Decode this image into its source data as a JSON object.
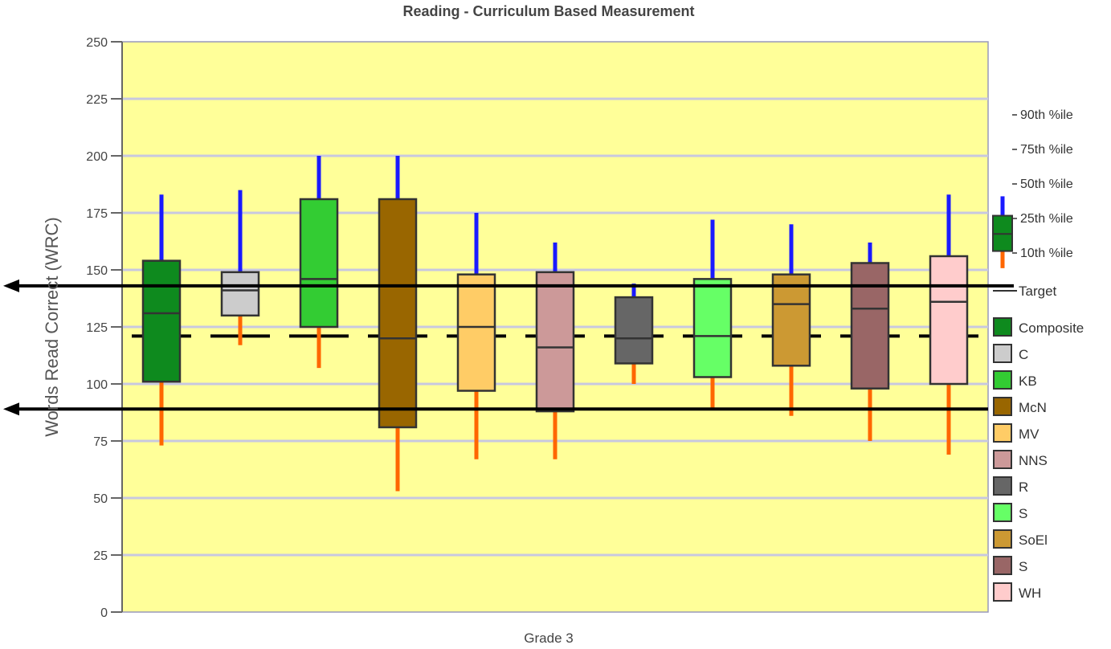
{
  "chart_data": {
    "type": "box",
    "title": "Reading - Curriculum Based Measurement",
    "xlabel": "Grade 3",
    "ylabel": "Words Read Correct (WRC)",
    "ylim": [
      0,
      250
    ],
    "yticks": [
      0,
      25,
      50,
      75,
      100,
      125,
      150,
      175,
      200,
      225,
      250
    ],
    "grid": true,
    "legend_position": "right",
    "target_value": 143,
    "reference_line_value": 121,
    "lower_arrow_value": 89,
    "colors": {
      "plot_background": "#ffff99",
      "gridline": "#c8c8e0",
      "upper_whisker": "#1a1aff",
      "lower_whisker": "#ff6600"
    },
    "percentile_legend": {
      "labels": [
        "90th %ile",
        "75th %ile",
        "50th %ile",
        "25th %ile",
        "10th %ile"
      ],
      "box_color": "#0e8a1e",
      "p90": 220,
      "p75": 203,
      "p50": 187,
      "p25": 172,
      "p10": 157
    },
    "target_label": "Target",
    "series": [
      {
        "name": "Composite",
        "color": "#0e8a1e",
        "p10": 73,
        "p25": 101,
        "p50": 131,
        "p75": 154,
        "p90": 183
      },
      {
        "name": "C",
        "color": "#cccccc",
        "p10": 117,
        "p25": 130,
        "p50": 141,
        "p75": 149,
        "p90": 185
      },
      {
        "name": "KB",
        "color": "#33cc33",
        "p10": 107,
        "p25": 125,
        "p50": 146,
        "p75": 181,
        "p90": 200
      },
      {
        "name": "McN",
        "color": "#996600",
        "p10": 53,
        "p25": 81,
        "p50": 120,
        "p75": 181,
        "p90": 200
      },
      {
        "name": "MV",
        "color": "#ffcc66",
        "p10": 67,
        "p25": 97,
        "p50": 125,
        "p75": 148,
        "p90": 175
      },
      {
        "name": "NNS",
        "color": "#cc9999",
        "p10": 67,
        "p25": 88,
        "p50": 116,
        "p75": 149,
        "p90": 162
      },
      {
        "name": "R",
        "color": "#666666",
        "p10": 100,
        "p25": 109,
        "p50": 120,
        "p75": 138,
        "p90": 144
      },
      {
        "name": "S",
        "color": "#66ff66",
        "p10": 89,
        "p25": 103,
        "p50": 121,
        "p75": 146,
        "p90": 172
      },
      {
        "name": "SoEl",
        "color": "#cc9933",
        "p10": 86,
        "p25": 108,
        "p50": 135,
        "p75": 148,
        "p90": 170
      },
      {
        "name": "S",
        "color": "#996666",
        "p10": 75,
        "p25": 98,
        "p50": 133,
        "p75": 153,
        "p90": 162
      },
      {
        "name": "WH",
        "color": "#ffcccc",
        "p10": 69,
        "p25": 100,
        "p50": 136,
        "p75": 156,
        "p90": 183
      }
    ]
  }
}
